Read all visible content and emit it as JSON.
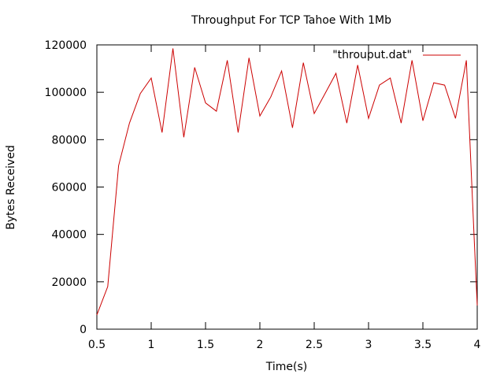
{
  "chart_data": {
    "type": "line",
    "title": "Throughput For TCP Tahoe With 1Mb",
    "xlabel": "Time(s)",
    "ylabel": "Bytes Received",
    "xlim": [
      0.5,
      4
    ],
    "ylim": [
      0,
      120000
    ],
    "x_ticks": [
      "0.5",
      "1",
      "1.5",
      "2",
      "2.5",
      "3",
      "3.5",
      "4"
    ],
    "y_ticks": [
      "0",
      "20000",
      "40000",
      "60000",
      "80000",
      "100000",
      "120000"
    ],
    "grid": false,
    "legend_position": "top-right",
    "series": [
      {
        "name": "\"throuput.dat\"",
        "color": "#cc0000",
        "x": [
          0.5,
          0.6,
          0.7,
          0.8,
          0.9,
          1.0,
          1.1,
          1.2,
          1.3,
          1.4,
          1.5,
          1.6,
          1.7,
          1.8,
          1.9,
          2.0,
          2.1,
          2.2,
          2.3,
          2.4,
          2.5,
          2.6,
          2.7,
          2.8,
          2.9,
          3.0,
          3.1,
          3.2,
          3.3,
          3.4,
          3.5,
          3.6,
          3.7,
          3.8,
          3.9,
          3.97,
          4.0
        ],
        "y": [
          6000,
          18000,
          69000,
          87000,
          99500,
          106000,
          83000,
          118500,
          81000,
          110500,
          95500,
          92000,
          113500,
          83000,
          114500,
          90000,
          98000,
          109000,
          85000,
          112500,
          91000,
          99500,
          108000,
          87000,
          111500,
          89000,
          103000,
          106000,
          87000,
          113500,
          88000,
          104000,
          103000,
          89000,
          113500,
          40000,
          10000
        ]
      }
    ]
  }
}
